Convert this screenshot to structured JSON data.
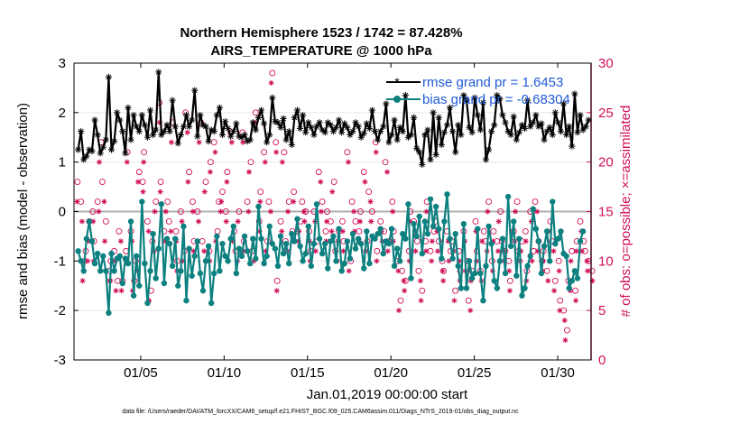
{
  "title_line1": "Northern Hemisphere 1523 / 1742 = 87.428%",
  "title_line2": "AIRS_TEMPERATURE @ 1000 hPa",
  "footer": "data file: /Users/raeder/DAI/ATM_forcXX/CAM6_setup/f.e21.FHIST_BGC.f09_025.CAM6assim.011/Diags_NTrS_2019-01/obs_diag_output.nc",
  "colors": {
    "rmse": "#000000",
    "bias": "#0d8080",
    "obs": "#d0105a",
    "legend_text": "#1f5bd6",
    "zero_line": "#b0b0b0"
  },
  "chart_data": {
    "type": "line",
    "xlabel": "Jan.01,2019 00:00:00 start",
    "ylabel": "rmse and bias (model - observation)",
    "y2label": "# of obs: o=possible; ×=assimilated",
    "xlim": [
      1.0,
      32.0
    ],
    "ylim": [
      -3,
      3
    ],
    "y2lim": [
      0,
      30
    ],
    "xticks": [
      5,
      10,
      15,
      20,
      25,
      30
    ],
    "xtick_labels": [
      "01/05",
      "01/10",
      "01/15",
      "01/20",
      "01/25",
      "01/30"
    ],
    "yticks": [
      -3,
      -2,
      -1,
      0,
      1,
      2,
      3
    ],
    "ytick_labels": [
      "-3",
      "-2",
      "-1",
      "0",
      "1",
      "2",
      "3"
    ],
    "y2ticks": [
      0,
      5,
      10,
      15,
      20,
      25,
      30
    ],
    "y2tick_labels": [
      "0",
      "5",
      "10",
      "15",
      "20",
      "25",
      "30"
    ],
    "legend_position": "top-right",
    "series": [
      {
        "name": "rmse",
        "legend": "rmse grand pr = 1.6453",
        "marker": "asterisk",
        "values": [
          1.25,
          1.62,
          1.05,
          1.12,
          1.25,
          1.22,
          1.85,
          1.55,
          1.18,
          1.3,
          1.45,
          2.72,
          1.25,
          1.42,
          2.0,
          1.85,
          1.62,
          1.18,
          2.1,
          1.45,
          1.95,
          1.72,
          1.62,
          1.95,
          1.75,
          1.5,
          2.05,
          1.55,
          1.65,
          2.82,
          1.55,
          1.62,
          1.75,
          1.62,
          2.25,
          1.72,
          1.38,
          1.55,
          1.72,
          1.95,
          1.72,
          1.85,
          2.45,
          1.52,
          1.95,
          1.75,
          1.72,
          1.42,
          1.65,
          1.62,
          1.95,
          2.1,
          1.55,
          1.82,
          1.68,
          1.52,
          1.62,
          1.78,
          1.52,
          1.5,
          1.55,
          1.42,
          1.45,
          1.8,
          1.65,
          1.9,
          2.05,
          1.78,
          1.4,
          1.55,
          2.3,
          1.82,
          1.8,
          1.7,
          1.88,
          1.45,
          1.62,
          1.35,
          1.9,
          2.05,
          1.68,
          1.95,
          1.6,
          1.8,
          1.7,
          1.55,
          1.72,
          1.8,
          1.65,
          1.6,
          1.8,
          1.75,
          1.62,
          1.7,
          1.85,
          1.6,
          1.78,
          1.7,
          1.55,
          1.62,
          1.8,
          1.72,
          1.5,
          1.58,
          1.78,
          1.68,
          2.05,
          1.62,
          1.45,
          1.62,
          1.72,
          2.18,
          1.4,
          1.55,
          1.85,
          1.45,
          1.7,
          1.62,
          2.35,
          1.5,
          1.55,
          1.9,
          1.28,
          1.2,
          0.95,
          1.55,
          1.65,
          1.05,
          2.0,
          1.15,
          1.9,
          1.35,
          1.6,
          1.75,
          2.1,
          1.62,
          1.2,
          1.75,
          1.55,
          2.35,
          2.25,
          1.7,
          1.6,
          2.3,
          1.95,
          1.65,
          2.2,
          1.05,
          1.25,
          1.62,
          1.75,
          2.35,
          2.28,
          1.95,
          1.8,
          1.62,
          1.55,
          1.92,
          1.45,
          1.6,
          1.75,
          1.68,
          2.25,
          1.72,
          1.8,
          1.95,
          1.72,
          1.78,
          1.45,
          1.62,
          1.7,
          1.55,
          2.0,
          1.8,
          1.62,
          2.18,
          1.55,
          1.72,
          1.32,
          2.38,
          1.6,
          1.95,
          1.65,
          1.72,
          1.85
        ]
      },
      {
        "name": "bias",
        "legend": "bias grand pr = -0.68304",
        "marker": "dot",
        "values": [
          -0.8,
          -1.0,
          -1.2,
          -0.55,
          -0.2,
          -0.6,
          -1.05,
          -0.85,
          -1.2,
          -0.9,
          -1.2,
          -2.05,
          -0.85,
          -1.2,
          -0.95,
          -0.9,
          -1.45,
          -0.95,
          -1.05,
          -0.2,
          -1.7,
          -0.9,
          -1.5,
          0.2,
          -1.05,
          -1.85,
          -1.2,
          -0.45,
          -1.35,
          -0.75,
          0.15,
          -1.45,
          -0.55,
          -0.65,
          -1.1,
          -0.55,
          -1.5,
          -1.2,
          -0.3,
          -1.8,
          -0.75,
          -1.3,
          -0.9,
          -0.6,
          -1.25,
          -1.6,
          -1.0,
          -0.7,
          -1.85,
          -1.25,
          -0.5,
          -1.2,
          -0.65,
          -0.9,
          -1.0,
          -0.55,
          -0.3,
          -1.25,
          -0.75,
          -0.9,
          -0.5,
          -0.8,
          -1.05,
          -0.55,
          -0.95,
          0.1,
          -0.55,
          -1.05,
          -0.9,
          -0.3,
          -0.65,
          -0.75,
          -1.1,
          -0.5,
          -0.85,
          -0.65,
          -1.05,
          -0.45,
          -0.6,
          -0.15,
          -0.7,
          -1.0,
          -0.85,
          -0.3,
          -1.1,
          -0.65,
          0.15,
          -0.55,
          -0.85,
          -0.65,
          -1.15,
          -0.6,
          -0.5,
          -1.0,
          -0.35,
          -1.2,
          -1.05,
          -0.6,
          -0.95,
          -0.45,
          -0.75,
          -0.55,
          -0.65,
          -1.15,
          -0.4,
          -1.05,
          -0.5,
          -0.55,
          -0.45,
          -0.35,
          -0.85,
          -0.6,
          -0.65,
          -0.35,
          -1.1,
          -0.75,
          -1.0,
          -0.45,
          -0.55,
          0.15,
          -1.35,
          -0.25,
          -0.5,
          -0.1,
          -0.85,
          -0.2,
          -0.45,
          0.25,
          -0.3,
          0.1,
          -0.35,
          -0.95,
          -0.2,
          0.35,
          -0.55,
          -0.95,
          -0.45,
          -1.1,
          -1.55,
          -0.25,
          -1.55,
          -1.0,
          -1.35,
          -1.25,
          -0.35,
          -1.25,
          -1.8,
          -1.1,
          -0.3,
          -0.65,
          -1.4,
          -1.55,
          -1.0,
          -0.55,
          -1.25,
          0.3,
          -0.7,
          -0.2,
          -1.3,
          -0.55,
          -1.7,
          -1.55,
          -1.1,
          -0.9,
          0.05,
          -0.35,
          -0.6,
          -1.25,
          -0.7,
          -0.4,
          -1.0,
          0.2,
          -0.65,
          -0.55,
          -0.4,
          -0.85,
          -0.9,
          -1.55,
          -1.4,
          -1.2,
          -1.35,
          -0.6,
          -0.4
        ]
      }
    ],
    "obs_possible": {
      "marker": "circle",
      "values": [
        18,
        16,
        10,
        11,
        14,
        15,
        12,
        16,
        22,
        18,
        14,
        9,
        10,
        11,
        8,
        13,
        8,
        11,
        21,
        13,
        8,
        10,
        19,
        18,
        21,
        14,
        7,
        12,
        16,
        26,
        18,
        13,
        16,
        14,
        24,
        13,
        10,
        15,
        11,
        25,
        19,
        16,
        12,
        15,
        24,
        12,
        18,
        11,
        20,
        22,
        13,
        16,
        17,
        15,
        19,
        23,
        13,
        11,
        15,
        23,
        12,
        16,
        20,
        11,
        25,
        14,
        17,
        21,
        12,
        16,
        29,
        22,
        8,
        14,
        21,
        12,
        16,
        13,
        17,
        13,
        14,
        16,
        15,
        13,
        11,
        15,
        12,
        19,
        16,
        13,
        15,
        14,
        18,
        11,
        13,
        14,
        12,
        21,
        10,
        16,
        14,
        13,
        15,
        19,
        12,
        17,
        15,
        22,
        11,
        14,
        13,
        20,
        12,
        16,
        13,
        10,
        6,
        9,
        8,
        11,
        15,
        14,
        12,
        9,
        7,
        12,
        16,
        11,
        13,
        14,
        12,
        10,
        9,
        13,
        11,
        12,
        7,
        11,
        9,
        13,
        10,
        6,
        9,
        14,
        11,
        9,
        13,
        12,
        16,
        10,
        13,
        12,
        15,
        12,
        11,
        10,
        8,
        13,
        16,
        11,
        12,
        13,
        9,
        15,
        11,
        16,
        12,
        10,
        11,
        9,
        14,
        12,
        8,
        10,
        6,
        5,
        3,
        8,
        11,
        7,
        12,
        14,
        12,
        11,
        10,
        9
      ]
    },
    "obs_assimilated": {
      "marker": "asterisk",
      "values": [
        16,
        14,
        8,
        10,
        12,
        14,
        10,
        15,
        20,
        16,
        12,
        8,
        8,
        10,
        7,
        12,
        7,
        10,
        20,
        12,
        7,
        9,
        18,
        17,
        20,
        13,
        6,
        11,
        15,
        24,
        17,
        12,
        15,
        13,
        22,
        12,
        9,
        14,
        10,
        23,
        18,
        15,
        11,
        14,
        22,
        11,
        17,
        10,
        19,
        21,
        12,
        15,
        16,
        14,
        18,
        22,
        12,
        10,
        14,
        22,
        11,
        15,
        19,
        10,
        24,
        13,
        16,
        20,
        11,
        15,
        28,
        21,
        7,
        13,
        20,
        11,
        15,
        12,
        16,
        12,
        13,
        15,
        14,
        12,
        10,
        14,
        11,
        18,
        15,
        12,
        14,
        13,
        17,
        10,
        12,
        13,
        11,
        20,
        9,
        15,
        13,
        12,
        14,
        18,
        11,
        16,
        14,
        21,
        10,
        13,
        12,
        19,
        11,
        15,
        12,
        9,
        5,
        8,
        7,
        10,
        14,
        13,
        11,
        8,
        6,
        11,
        15,
        10,
        12,
        13,
        11,
        9,
        8,
        12,
        10,
        11,
        6,
        10,
        8,
        12,
        9,
        5,
        8,
        13,
        10,
        8,
        12,
        11,
        15,
        9,
        12,
        11,
        14,
        11,
        10,
        9,
        7,
        12,
        15,
        10,
        11,
        12,
        8,
        14,
        10,
        15,
        11,
        9,
        10,
        8,
        13,
        11,
        7,
        9,
        5,
        4,
        2,
        7,
        10,
        6,
        11,
        13,
        11,
        10,
        9,
        8
      ]
    }
  }
}
